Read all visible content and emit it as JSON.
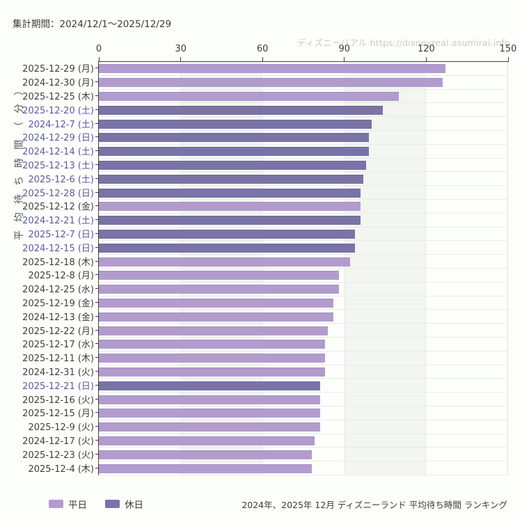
{
  "header": {
    "title": "集計期間：2024/12/1～2025/12/29",
    "watermark": "ディズニーリアル https://disneyreal.asumirai.info"
  },
  "footer": {
    "caption": "2024年、2025年 12月 ディズニーランド 平均待ち時間 ランキング"
  },
  "colors": {
    "page_bg": "#fdfffb",
    "band": "#f3f5f0",
    "grid": "#e9ebe7",
    "axis": "#3f3f3f",
    "right_edge": "#e0e2de",
    "bar_weekday": "#b29cce",
    "bar_weekday_edge": "#a48fc2",
    "bar_holiday": "#7a73a6",
    "bar_holiday_edge": "#6c6599",
    "label_weekday": "#3d3d3d",
    "label_holiday": "#5a58a2"
  },
  "chart_data": {
    "type": "bar",
    "orientation": "horizontal",
    "title": "集計期間：2024/12/1～2025/12/29",
    "xlabel": "",
    "ylabel": "平均待ち時間（分）",
    "xlim": [
      0,
      150
    ],
    "x_ticks": [
      0,
      30,
      60,
      90,
      120,
      150
    ],
    "shaded_bands": [
      [
        30,
        60
      ],
      [
        90,
        120
      ]
    ],
    "grid": "on",
    "legend_position": "bottom-left",
    "legend": [
      {
        "label": "平日",
        "series": "weekday"
      },
      {
        "label": "休日",
        "series": "holiday"
      }
    ],
    "rows": [
      {
        "date": "2025-12-29 (月)",
        "day_type": "weekday",
        "value": 127
      },
      {
        "date": "2024-12-30 (月)",
        "day_type": "weekday",
        "value": 126
      },
      {
        "date": "2025-12-25 (木)",
        "day_type": "weekday",
        "value": 110
      },
      {
        "date": "2025-12-20 (土)",
        "day_type": "holiday",
        "value": 104
      },
      {
        "date": "2024-12-7 (土)",
        "day_type": "holiday",
        "value": 100
      },
      {
        "date": "2024-12-29 (日)",
        "day_type": "holiday",
        "value": 99
      },
      {
        "date": "2024-12-14 (土)",
        "day_type": "holiday",
        "value": 99
      },
      {
        "date": "2025-12-13 (土)",
        "day_type": "holiday",
        "value": 98
      },
      {
        "date": "2025-12-6 (土)",
        "day_type": "holiday",
        "value": 97
      },
      {
        "date": "2025-12-28 (日)",
        "day_type": "holiday",
        "value": 96
      },
      {
        "date": "2025-12-12 (金)",
        "day_type": "weekday",
        "value": 96
      },
      {
        "date": "2024-12-21 (土)",
        "day_type": "holiday",
        "value": 96
      },
      {
        "date": "2025-12-7 (日)",
        "day_type": "holiday",
        "value": 94
      },
      {
        "date": "2024-12-15 (日)",
        "day_type": "holiday",
        "value": 94
      },
      {
        "date": "2025-12-18 (木)",
        "day_type": "weekday",
        "value": 92
      },
      {
        "date": "2025-12-8 (月)",
        "day_type": "weekday",
        "value": 88
      },
      {
        "date": "2024-12-25 (水)",
        "day_type": "weekday",
        "value": 88
      },
      {
        "date": "2025-12-19 (金)",
        "day_type": "weekday",
        "value": 86
      },
      {
        "date": "2024-12-13 (金)",
        "day_type": "weekday",
        "value": 86
      },
      {
        "date": "2025-12-22 (月)",
        "day_type": "weekday",
        "value": 84
      },
      {
        "date": "2025-12-17 (水)",
        "day_type": "weekday",
        "value": 83
      },
      {
        "date": "2025-12-11 (木)",
        "day_type": "weekday",
        "value": 83
      },
      {
        "date": "2024-12-31 (火)",
        "day_type": "weekday",
        "value": 83
      },
      {
        "date": "2025-12-21 (日)",
        "day_type": "holiday",
        "value": 81
      },
      {
        "date": "2025-12-16 (火)",
        "day_type": "weekday",
        "value": 81
      },
      {
        "date": "2025-12-15 (月)",
        "day_type": "weekday",
        "value": 81
      },
      {
        "date": "2025-12-9 (火)",
        "day_type": "weekday",
        "value": 81
      },
      {
        "date": "2024-12-17 (火)",
        "day_type": "weekday",
        "value": 79
      },
      {
        "date": "2025-12-23 (火)",
        "day_type": "weekday",
        "value": 78
      },
      {
        "date": "2025-12-4 (木)",
        "day_type": "weekday",
        "value": 78
      }
    ]
  }
}
